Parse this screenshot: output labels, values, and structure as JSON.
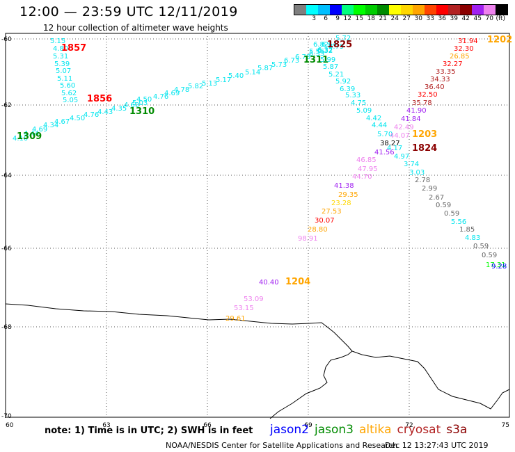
{
  "header": {
    "title": "12:00 — 23:59 UTC 12/11/2019",
    "subtitle": "12 hour collection of altimeter wave heights"
  },
  "legend": {
    "scale": [
      {
        "label": "",
        "color": "#7f7f7f"
      },
      {
        "label": "3",
        "color": "#00ffff"
      },
      {
        "label": "6",
        "color": "#00bfff"
      },
      {
        "label": "9",
        "color": "#0000ff"
      },
      {
        "label": "12",
        "color": "#00ff7f"
      },
      {
        "label": "15",
        "color": "#00ff00"
      },
      {
        "label": "18",
        "color": "#00cd00"
      },
      {
        "label": "21",
        "color": "#008b00"
      },
      {
        "label": "24",
        "color": "#ffff00"
      },
      {
        "label": "27",
        "color": "#ffd700"
      },
      {
        "label": "30",
        "color": "#ffa500"
      },
      {
        "label": "33",
        "color": "#ff4500"
      },
      {
        "label": "36",
        "color": "#ff0000"
      },
      {
        "label": "39",
        "color": "#b22222"
      },
      {
        "label": "42",
        "color": "#8b0000"
      },
      {
        "label": "45",
        "color": "#a020f0"
      },
      {
        "label": "70",
        "color": "#ee82ee"
      },
      {
        "label": "(ft)",
        "color": "#000000"
      }
    ]
  },
  "axes": {
    "x_ticks": [
      "60",
      "63",
      "66",
      "69",
      "72",
      "75"
    ],
    "y_ticks": [
      "-60",
      "-62",
      "-64",
      "-66",
      "-68",
      "-70"
    ],
    "lon_range": [
      60,
      75
    ],
    "lat_range": [
      -70,
      -59.5
    ]
  },
  "colors": {
    "jason2": "#0000ff",
    "jason3": "#008b00",
    "altika": "#ffa500",
    "cryosat": "#b22222",
    "s3a": "#8b0000",
    "cyan": "#00e5ee",
    "gray": "#666666",
    "violet": "#ee82ee",
    "purple": "#a020f0"
  },
  "tracks": [
    {
      "time": "1857",
      "time_color": "#ff0000",
      "values": [
        {
          "text": "5.15",
          "color": "#00e5ee"
        },
        {
          "text": "4.80",
          "color": "#00e5ee"
        },
        {
          "text": "5.31",
          "color": "#00e5ee"
        },
        {
          "text": "5.39",
          "color": "#00e5ee"
        },
        {
          "text": "5.07",
          "color": "#00e5ee"
        },
        {
          "text": "5.11",
          "color": "#00e5ee"
        },
        {
          "text": "5.60",
          "color": "#00e5ee"
        },
        {
          "text": "5.62",
          "color": "#00e5ee"
        },
        {
          "text": "5.05",
          "color": "#00e5ee"
        }
      ]
    },
    {
      "time": "1856",
      "time_color": "#ff0000",
      "values": []
    },
    {
      "time": "1309",
      "time_color": "#008b00",
      "values": [
        {
          "text": "4.10",
          "color": "#00e5ee"
        },
        {
          "text": "4.44",
          "color": "#00e5ee"
        },
        {
          "text": "4.69",
          "color": "#00e5ee"
        },
        {
          "text": "4.34",
          "color": "#00e5ee"
        },
        {
          "text": "4.67",
          "color": "#00e5ee"
        },
        {
          "text": "4.50",
          "color": "#00e5ee"
        },
        {
          "text": "4.76",
          "color": "#00e5ee"
        },
        {
          "text": "4.43",
          "color": "#00e5ee"
        },
        {
          "text": "4.35",
          "color": "#00e5ee"
        },
        {
          "text": "4.60",
          "color": "#00e5ee"
        },
        {
          "text": "5.03",
          "color": "#00e5ee"
        },
        {
          "text": "4.50",
          "color": "#00e5ee"
        },
        {
          "text": "4.76",
          "color": "#00e5ee"
        },
        {
          "text": "4.69",
          "color": "#00e5ee"
        },
        {
          "text": "4.78",
          "color": "#00e5ee"
        },
        {
          "text": "5.82",
          "color": "#00e5ee"
        },
        {
          "text": "5.13",
          "color": "#00e5ee"
        },
        {
          "text": "5.17",
          "color": "#00e5ee"
        },
        {
          "text": "5.40",
          "color": "#00e5ee"
        },
        {
          "text": "5.14",
          "color": "#00e5ee"
        },
        {
          "text": "5.87",
          "color": "#00e5ee"
        },
        {
          "text": "5.73",
          "color": "#00e5ee"
        },
        {
          "text": "6.73",
          "color": "#00e5ee"
        },
        {
          "text": "6.78",
          "color": "#00e5ee"
        },
        {
          "text": "6.33",
          "color": "#00e5ee"
        },
        {
          "text": "6.32",
          "color": "#00e5ee"
        }
      ]
    },
    {
      "time": "1310",
      "time_color": "#008b00",
      "values": []
    },
    {
      "time": "1311",
      "time_color": "#008b00",
      "values": []
    },
    {
      "time": "1825",
      "time_color": "#8b0000",
      "values": [
        {
          "text": "5.72",
          "color": "#00e5ee"
        },
        {
          "text": "6.82",
          "color": "#00e5ee"
        },
        {
          "text": "6.64",
          "color": "#00e5ee"
        },
        {
          "text": "6.79",
          "color": "#00e5ee"
        },
        {
          "text": "5.56",
          "color": "#00e5ee"
        },
        {
          "text": "6.32",
          "color": "#00e5ee"
        },
        {
          "text": "5.99",
          "color": "#00e5ee"
        },
        {
          "text": "5.87",
          "color": "#00e5ee"
        },
        {
          "text": "5.21",
          "color": "#00e5ee"
        },
        {
          "text": "5.92",
          "color": "#00e5ee"
        },
        {
          "text": "6.39",
          "color": "#00e5ee"
        },
        {
          "text": "5.33",
          "color": "#00e5ee"
        },
        {
          "text": "4.75",
          "color": "#00e5ee"
        },
        {
          "text": "5.09",
          "color": "#00e5ee"
        },
        {
          "text": "4.42",
          "color": "#00e5ee"
        },
        {
          "text": "4.44",
          "color": "#00e5ee"
        },
        {
          "text": "5.70",
          "color": "#00e5ee"
        },
        {
          "text": "38.27",
          "color": "#000000"
        },
        {
          "text": "4.17",
          "color": "#00e5ee"
        },
        {
          "text": "4.97",
          "color": "#00e5ee"
        },
        {
          "text": "3.74",
          "color": "#00e5ee"
        },
        {
          "text": "3.03",
          "color": "#00e5ee"
        },
        {
          "text": "2.78",
          "color": "#666666"
        },
        {
          "text": "2.99",
          "color": "#666666"
        },
        {
          "text": "2.67",
          "color": "#666666"
        },
        {
          "text": "0.59",
          "color": "#666666"
        },
        {
          "text": "0.59",
          "color": "#666666"
        },
        {
          "text": "5.56",
          "color": "#00e5ee"
        },
        {
          "text": "1.85",
          "color": "#666666"
        },
        {
          "text": "4.83",
          "color": "#00e5ee"
        },
        {
          "text": "0.59",
          "color": "#666666"
        },
        {
          "text": "0.59",
          "color": "#666666"
        },
        {
          "text": "17.31",
          "color": "#00ff00"
        },
        {
          "text": "9.28",
          "color": "#0000ff"
        }
      ]
    },
    {
      "time": "1202",
      "time_color": "#ffa500",
      "values": [
        {
          "text": "31.94",
          "color": "#ff0000"
        },
        {
          "text": "32.30",
          "color": "#ff0000"
        },
        {
          "text": "26.85",
          "color": "#ffa500"
        },
        {
          "text": "32.27",
          "color": "#ff0000"
        },
        {
          "text": "33.35",
          "color": "#b22222"
        },
        {
          "text": "34.33",
          "color": "#b22222"
        },
        {
          "text": "36.40",
          "color": "#b22222"
        },
        {
          "text": "32.50",
          "color": "#ff0000"
        },
        {
          "text": "35.78",
          "color": "#b22222"
        },
        {
          "text": "41.90",
          "color": "#a020f0"
        },
        {
          "text": "41.84",
          "color": "#a020f0"
        },
        {
          "text": "42.49",
          "color": "#ee82ee"
        },
        {
          "text": "44.07",
          "color": "#ee82ee"
        },
        {
          "text": "41.56",
          "color": "#a020f0"
        },
        {
          "text": "46.85",
          "color": "#ee82ee"
        },
        {
          "text": "47.95",
          "color": "#ee82ee"
        },
        {
          "text": "44.70",
          "color": "#ee82ee"
        },
        {
          "text": "41.38",
          "color": "#a020f0"
        },
        {
          "text": "29.35",
          "color": "#ffa500"
        },
        {
          "text": "23.28",
          "color": "#ffd700"
        },
        {
          "text": "27.53",
          "color": "#ffa500"
        },
        {
          "text": "30.07",
          "color": "#ff0000"
        },
        {
          "text": "28.80",
          "color": "#ffa500"
        },
        {
          "text": "98.91",
          "color": "#ee82ee"
        }
      ]
    },
    {
      "time": "1203",
      "time_color": "#ffa500",
      "values": []
    },
    {
      "time": "1824",
      "time_color": "#8b0000",
      "values": []
    },
    {
      "time": "1204",
      "time_color": "#ffa500",
      "values": [
        {
          "text": "40.40",
          "color": "#a020f0"
        },
        {
          "text": "53.09",
          "color": "#ee82ee"
        },
        {
          "text": "53.15",
          "color": "#ee82ee"
        },
        {
          "text": "29.61",
          "color": "#ffa500"
        }
      ]
    }
  ],
  "footer": {
    "note": "note:  1) Time is in UTC;  2) SWH is in feet",
    "satellites": [
      {
        "name": "jason2",
        "color": "#0000ff"
      },
      {
        "name": "jason3",
        "color": "#008b00"
      },
      {
        "name": "altika",
        "color": "#ffa500"
      },
      {
        "name": "cryosat",
        "color": "#b22222"
      },
      {
        "name": "s3a",
        "color": "#8b0000"
      }
    ],
    "credit": "NOAA/NESDIS Center for Satellite Applications and Research",
    "timestamp": "Dec 12 13:27:43 UTC 2019"
  }
}
